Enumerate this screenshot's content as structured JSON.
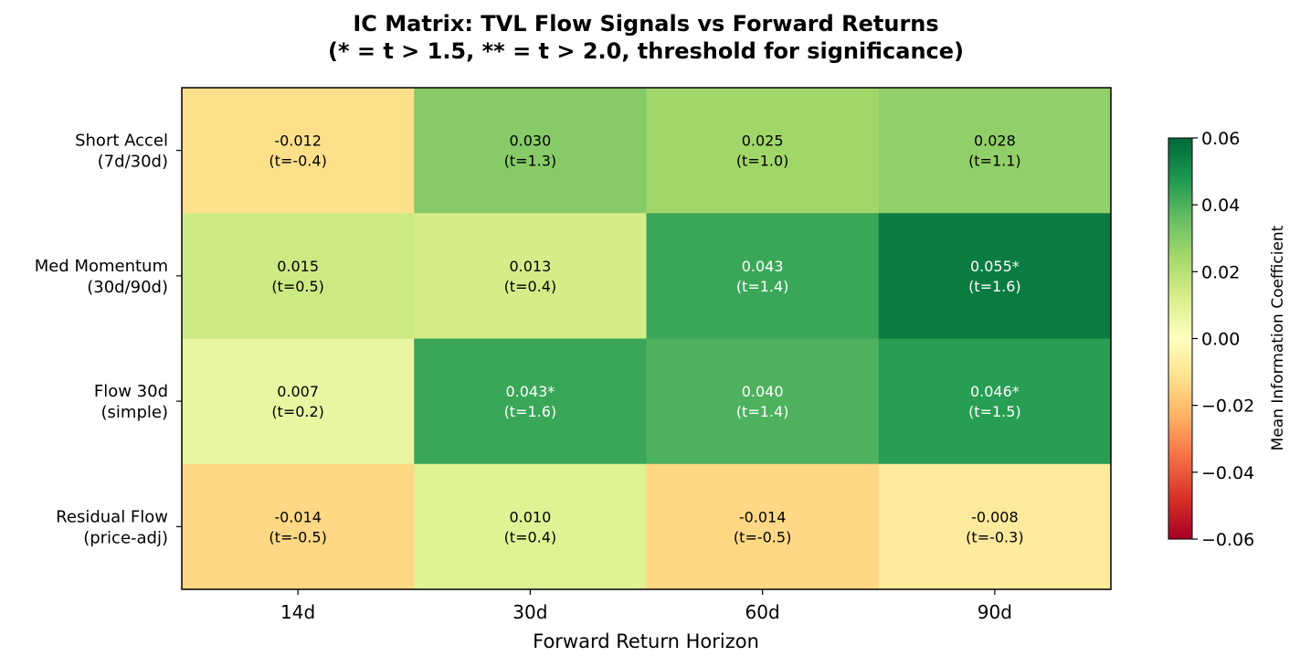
{
  "chart_data": {
    "type": "heatmap",
    "title_line1": "IC Matrix: TVL Flow Signals vs Forward Returns",
    "title_line2": "(* = t > 1.5, ** = t > 2.0, threshold for significance)",
    "xlabel": "Forward Return Horizon",
    "x_categories": [
      "14d",
      "30d",
      "60d",
      "90d"
    ],
    "y_categories": [
      [
        "Short Accel",
        "(7d/30d)"
      ],
      [
        "Med Momentum",
        "(30d/90d)"
      ],
      [
        "Flow 30d",
        "(simple)"
      ],
      [
        "Residual Flow",
        "(price-adj)"
      ]
    ],
    "values": [
      [
        -0.012,
        0.03,
        0.025,
        0.028
      ],
      [
        0.015,
        0.013,
        0.043,
        0.055
      ],
      [
        0.007,
        0.043,
        0.04,
        0.046
      ],
      [
        -0.014,
        0.01,
        -0.014,
        -0.008
      ]
    ],
    "cell_labels": [
      [
        [
          "-0.012",
          "(t=-0.4)"
        ],
        [
          "0.030",
          "(t=1.3)"
        ],
        [
          "0.025",
          "(t=1.0)"
        ],
        [
          "0.028",
          "(t=1.1)"
        ]
      ],
      [
        [
          "0.015",
          "(t=0.5)"
        ],
        [
          "0.013",
          "(t=0.4)"
        ],
        [
          "0.043",
          "(t=1.4)"
        ],
        [
          "0.055*",
          "(t=1.6)"
        ]
      ],
      [
        [
          "0.007",
          "(t=0.2)"
        ],
        [
          "0.043*",
          "(t=1.6)"
        ],
        [
          "0.040",
          "(t=1.4)"
        ],
        [
          "0.046*",
          "(t=1.5)"
        ]
      ],
      [
        [
          "-0.014",
          "(t=-0.5)"
        ],
        [
          "0.010",
          "(t=0.4)"
        ],
        [
          "-0.014",
          "(t=-0.5)"
        ],
        [
          "-0.008",
          "(t=-0.3)"
        ]
      ]
    ],
    "colormap": "RdYlGn",
    "vmin": -0.06,
    "vmax": 0.06,
    "colorbar_label": "Mean Information Coefficient",
    "colorbar_ticks": [
      "0.06",
      "0.04",
      "0.02",
      "0.00",
      "−0.02",
      "−0.04",
      "−0.06"
    ],
    "colorbar_tick_values": [
      0.06,
      0.04,
      0.02,
      0.0,
      -0.02,
      -0.04,
      -0.06
    ],
    "colorbar_position": "right"
  }
}
